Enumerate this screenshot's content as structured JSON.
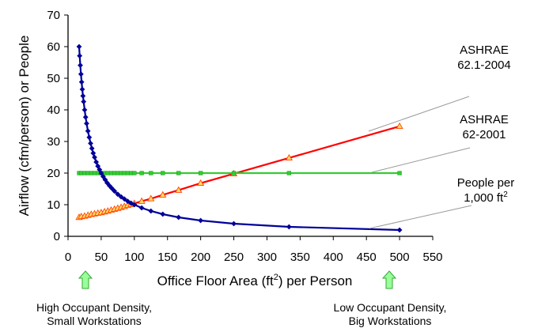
{
  "chart_data": {
    "type": "line",
    "xlabel_main": "Office Floor Area (ft",
    "xlabel_sup": "2",
    "xlabel_tail": ") per Person",
    "ylabel": "Airflow (cfm/person) or People",
    "xlim": [
      0,
      550
    ],
    "ylim": [
      0,
      70
    ],
    "xticks": [
      "0",
      "50",
      "100",
      "150",
      "200",
      "250",
      "300",
      "350",
      "400",
      "450",
      "500",
      "550"
    ],
    "yticks": [
      "0",
      "10",
      "20",
      "30",
      "40",
      "50",
      "60",
      "70"
    ],
    "grid": false,
    "series": [
      {
        "key": "ashrae_621_2004",
        "label_line1": "ASHRAE",
        "label_line2": "62.1-2004",
        "color": "#ff0000",
        "marker": "triangle",
        "x": [
          16.7,
          20,
          25,
          30,
          35,
          40,
          45,
          50,
          55,
          60,
          65,
          70,
          75,
          80,
          85,
          90,
          95,
          100,
          111.1,
          125,
          142.9,
          166.7,
          200,
          250,
          333.3,
          500
        ],
        "y": [
          6.0,
          6.25,
          6.4,
          6.67,
          6.93,
          7.14,
          7.33,
          7.5,
          7.76,
          8.0,
          8.28,
          8.57,
          8.87,
          9.17,
          9.47,
          9.78,
          10.09,
          10.4,
          11.1,
          11.9,
          13.1,
          14.6,
          16.8,
          19.8,
          24.8,
          34.8
        ]
      },
      {
        "key": "ashrae_62_2001",
        "label_line1": "ASHRAE",
        "label_line2": "62-2001",
        "color": "#33cc33",
        "marker": "square",
        "x": [
          16.7,
          20,
          25,
          30,
          35,
          40,
          45,
          50,
          55,
          60,
          65,
          70,
          75,
          80,
          85,
          90,
          95,
          100,
          111.1,
          125,
          142.9,
          166.7,
          200,
          250,
          333.3,
          500
        ],
        "y": [
          20,
          20,
          20,
          20,
          20,
          20,
          20,
          20,
          20,
          20,
          20,
          20,
          20,
          20,
          20,
          20,
          20,
          20,
          20,
          20,
          20,
          20,
          20,
          20,
          20,
          20
        ]
      },
      {
        "key": "people_per_1000",
        "label_line1": "People per",
        "label_line2": "1,000 ft",
        "label_sup": "2",
        "color": "#000099",
        "marker": "diamond",
        "x": [
          16.7,
          17.5,
          18.5,
          19.5,
          20.5,
          21.5,
          22.5,
          23.5,
          25,
          26.5,
          28,
          30,
          32,
          34,
          36,
          38,
          40,
          42.5,
          45,
          47.5,
          50,
          53,
          56,
          59,
          62.5,
          66,
          70,
          75,
          80,
          85,
          90,
          95,
          100,
          111.1,
          125,
          142.9,
          166.7,
          200,
          250,
          333.3,
          500
        ],
        "y": [
          60.0,
          57.1,
          54.1,
          51.3,
          48.8,
          46.5,
          44.4,
          42.6,
          40.0,
          37.7,
          35.7,
          33.3,
          31.3,
          29.4,
          27.8,
          26.3,
          25.0,
          23.5,
          22.2,
          21.1,
          20.0,
          18.9,
          17.9,
          16.9,
          16.0,
          15.2,
          14.3,
          13.3,
          12.5,
          11.8,
          11.1,
          10.5,
          10.0,
          9.0,
          8.0,
          7.0,
          6.0,
          5.0,
          4.0,
          3.0,
          2.0
        ]
      }
    ]
  },
  "notes": {
    "left_line1": "High Occupant Density,",
    "left_line2": "Small Workstations",
    "right_line1": "Low Occupant Density,",
    "right_line2": "Big Workstations",
    "arrow_color": "#99ff99"
  }
}
